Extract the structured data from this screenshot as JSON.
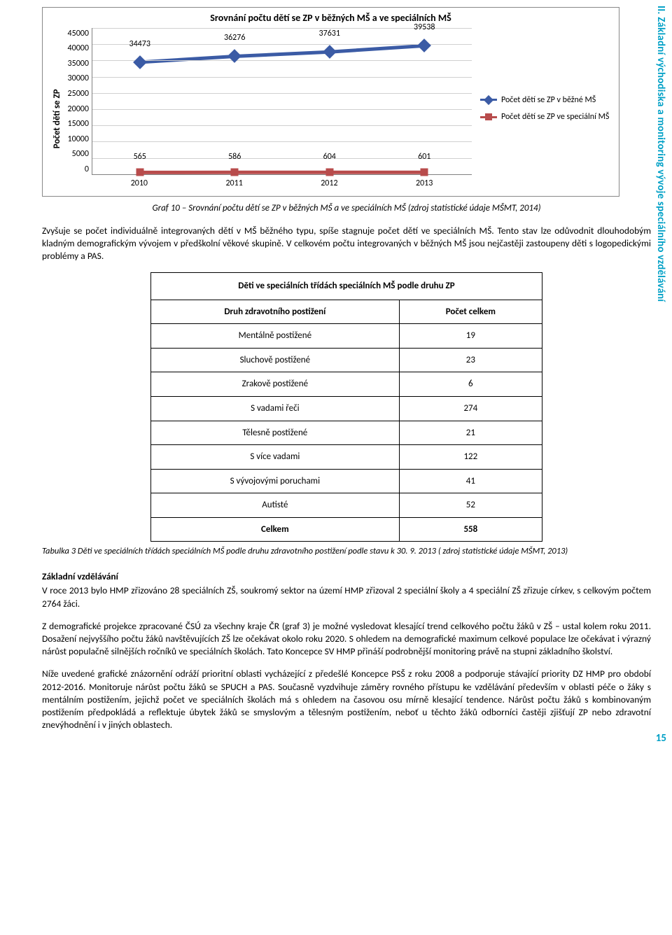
{
  "side_label": "II. Základní východiska a monitoring vývoje speciálního vzdělávání",
  "page_number": "15",
  "chart": {
    "type": "line",
    "title": "Srovnání počtu dětí se ZP v běžných MŠ a ve speciálních  MŠ",
    "y_axis_label": "Počet dětí se ZP",
    "categories": [
      "2010",
      "2011",
      "2012",
      "2013"
    ],
    "x_positions_pct": [
      12.5,
      37.5,
      62.5,
      87.5
    ],
    "ymax": 45000,
    "yticks": [
      "45000",
      "40000",
      "35000",
      "30000",
      "25000",
      "20000",
      "15000",
      "10000",
      "5000",
      "0"
    ],
    "series": [
      {
        "name": "Počet dětí se ZP v běžné MŠ",
        "color": "#3b5ba5",
        "marker_shape": "diamond",
        "line_width": 5,
        "values": [
          34473,
          36276,
          37631,
          39538
        ],
        "label_offset_y": -18
      },
      {
        "name": "Počet dětí se ZP ve speciální MŠ",
        "color": "#b84c4c",
        "marker_shape": "square",
        "line_width": 5,
        "values": [
          565,
          586,
          604,
          601
        ],
        "label_offset_y": -14
      }
    ],
    "grid_color": "#d0d0d0",
    "border_color": "#808080",
    "background": "#ffffff"
  },
  "caption_chart": "Graf 10 – Srovnání počtu dětí se ZP v běžných MŠ a ve speciálních MŠ (zdroj statistické údaje MŠMT, 2014)",
  "para1": "Zvyšuje se počet individuálně integrovaných dětí v MŠ běžného typu, spíše stagnuje počet dětí ve speciálních MŠ. Tento stav lze odůvodnit dlouhodobým kladným demografickým vývojem v předškolní věkové skupině. V celkovém počtu integrovaných v běžných MŠ jsou nejčastěji zastoupeny děti s logopedickými problémy a PAS.",
  "table": {
    "title": "Děti ve speciálních třídách speciálních MŠ podle druhu ZP",
    "col_headers": [
      "Druh zdravotního postižení",
      "Počet celkem"
    ],
    "rows": [
      [
        "Mentálně postižené",
        "19"
      ],
      [
        "Sluchově postižené",
        "23"
      ],
      [
        "Zrakově postižené",
        "6"
      ],
      [
        "S vadami řeči",
        "274"
      ],
      [
        "Tělesně postižené",
        "21"
      ],
      [
        "S více vadami",
        "122"
      ],
      [
        "S vývojovými poruchami",
        "41"
      ],
      [
        "Autisté",
        "52"
      ]
    ],
    "total": [
      "Celkem",
      "558"
    ]
  },
  "caption_table": "Tabulka 3 Děti ve speciálních třídách speciálních MŠ podle druhu zdravotního postižení podle stavu k 30. 9. 2013 ( zdroj statistické údaje MŠMT, 2013)",
  "section2_head": "Základní vzdělávání",
  "para2": "V roce 2013 bylo HMP zřizováno 28 speciálních ZŠ, soukromý sektor na území HMP zřizoval 2 speciální školy a 4 speciální ZŠ zřizuje církev, s celkovým počtem 2764 žáci.",
  "para3": "Z demografické projekce zpracované ČSÚ za všechny kraje ČR (graf 3) je možné vysledovat klesající trend celkového počtu žáků v ZŠ – ustal kolem roku 2011. Dosažení nejvyššího počtu žáků navštěvujících ZŠ lze očekávat okolo roku 2020. S ohledem na demografické maximum celkové populace lze očekávat i výrazný nárůst populačně silnějších ročníků ve speciálních školách. Tato Koncepce SV HMP přináší podrobnější monitoring právě na stupni základního školství.",
  "para4": "Níže uvedené grafické znázornění odráží prioritní oblasti vycházející z předešlé Koncepce PSŠ z roku 2008 a podporuje stávající priority DZ HMP pro období 2012-2016. Monitoruje nárůst počtu žáků se SPUCH a PAS. Současně vyzdvihuje záměry rovného přístupu ke vzdělávání především v oblasti péče o žáky s mentálním postižením, jejichž počet ve speciálních školách má s ohledem na časovou osu mírně klesající tendence. Nárůst počtu žáků s kombinovaným postižením předpokládá a reflektuje úbytek žáků se smyslovým a tělesným postižením, neboť u těchto žáků odborníci častěji zjišťují ZP nebo zdravotní znevýhodnění i v jiných oblastech."
}
